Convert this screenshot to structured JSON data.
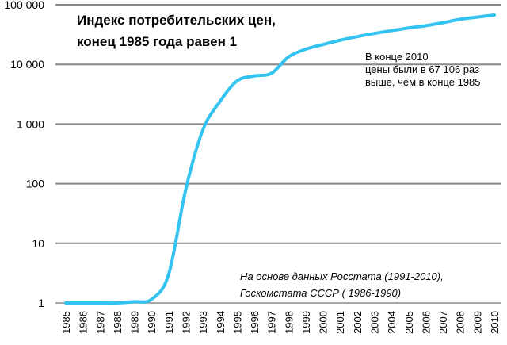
{
  "chart_data": {
    "type": "line",
    "title_lines": [
      "Индекс  потребительских цен,",
      "конец  1985 года равен 1"
    ],
    "y_scale": "log",
    "ylim": [
      1,
      100000
    ],
    "y_ticks": [
      {
        "value": 1,
        "label": "1"
      },
      {
        "value": 10,
        "label": "10"
      },
      {
        "value": 100,
        "label": "100"
      },
      {
        "value": 1000,
        "label": "1 000"
      },
      {
        "value": 10000,
        "label": "10 000"
      },
      {
        "value": 100000,
        "label": "100 000"
      }
    ],
    "x": [
      "1985",
      "1986",
      "1987",
      "1988",
      "1989",
      "1990",
      "1991",
      "1992",
      "1993",
      "1994",
      "1995",
      "1996",
      "1997",
      "1998",
      "1999",
      "2000",
      "2001",
      "2002",
      "2003",
      "2004",
      "2005",
      "2006",
      "2007",
      "2008",
      "2009",
      "2010"
    ],
    "series": [
      {
        "values": [
          1,
          1,
          1,
          1,
          1.05,
          1.15,
          3,
          80,
          800,
          2400,
          5300,
          6400,
          7100,
          13400,
          18000,
          21500,
          25400,
          29200,
          33000,
          36800,
          40800,
          44600,
          50000,
          57000,
          62000,
          67106
        ],
        "color": "#33c3f0"
      }
    ],
    "annotation_lines": [
      "В конце 2010",
      "цены были в 67 106 раз",
      "выше, чем в конце 1985"
    ],
    "source_lines": [
      "На основе данных Росстата  (1991-2010),",
      "Госкомстата СССР ( 1986-1990)"
    ],
    "grid": true,
    "gridline_color": "#888888"
  }
}
